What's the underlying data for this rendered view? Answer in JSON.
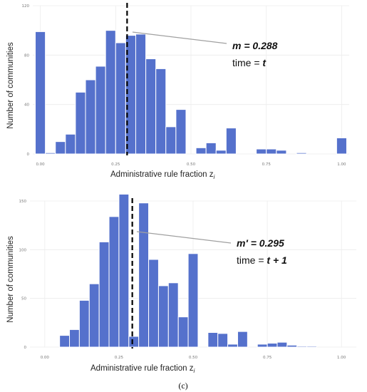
{
  "figure_label": "(c)",
  "chart_data": [
    {
      "type": "bar",
      "xlabel": "Administrative rule fraction z",
      "xlabel_subscript": "i",
      "ylabel": "Number of communities",
      "xlim": [
        -0.025,
        1.025
      ],
      "ylim": [
        0,
        120
      ],
      "x_ticks": [
        "0.00",
        "0.25",
        "0.50",
        "0.75",
        "1.00"
      ],
      "x_tick_values": [
        0,
        0.25,
        0.5,
        0.75,
        1.0
      ],
      "y_ticks": [
        "0",
        "40",
        "80",
        "120"
      ],
      "y_tick_values": [
        0,
        40,
        80,
        120
      ],
      "bin_width": 0.03333,
      "bin_centers": [
        0.0,
        0.0333,
        0.0667,
        0.1,
        0.1333,
        0.1667,
        0.2,
        0.2333,
        0.2667,
        0.3,
        0.3333,
        0.3667,
        0.4,
        0.4333,
        0.4667,
        0.5,
        0.5333,
        0.5667,
        0.6,
        0.6333,
        0.6667,
        0.7,
        0.7333,
        0.7667,
        0.8,
        0.8333,
        0.8667,
        0.9,
        0.9333,
        0.9667,
        1.0
      ],
      "values": [
        99,
        1,
        10,
        16,
        50,
        60,
        71,
        100,
        90,
        96,
        97,
        77,
        69,
        22,
        36,
        0,
        5,
        9,
        3,
        21,
        0,
        0,
        4,
        4,
        3,
        0,
        1,
        0,
        0,
        0,
        13
      ],
      "bar_color": "#5571cc",
      "mean_line_x": 0.288,
      "annotation": {
        "m_text": "m = 0.288",
        "time_text": "time = ",
        "time_value": "t"
      },
      "grid": true
    },
    {
      "type": "bar",
      "xlabel": "Administrative rule fraction z",
      "xlabel_subscript": "i",
      "ylabel": "Number of communities",
      "xlim": [
        -0.05,
        1.05
      ],
      "ylim": [
        0,
        150
      ],
      "x_ticks": [
        "0.00",
        "0.25",
        "0.50",
        "0.75",
        "1.00"
      ],
      "x_tick_values": [
        0,
        0.25,
        0.5,
        0.75,
        1.0
      ],
      "y_ticks": [
        "0",
        "50",
        "100",
        "150"
      ],
      "y_tick_values": [
        0,
        50,
        100,
        150
      ],
      "bin_width": 0.03333,
      "bin_centers": [
        0.0667,
        0.1,
        0.1333,
        0.1667,
        0.2,
        0.2333,
        0.2667,
        0.3,
        0.3333,
        0.3667,
        0.4,
        0.4333,
        0.4667,
        0.5,
        0.5333,
        0.5667,
        0.6,
        0.6333,
        0.6667,
        0.7,
        0.7333,
        0.7667,
        0.8,
        0.8333,
        0.8667,
        0.9
      ],
      "values": [
        12,
        18,
        48,
        65,
        108,
        134,
        157,
        11,
        148,
        90,
        63,
        66,
        31,
        96,
        0,
        15,
        14,
        3,
        16,
        0,
        3,
        4,
        5,
        2,
        1,
        1
      ],
      "bar_color": "#5571cc",
      "mean_line_x": 0.295,
      "annotation": {
        "m_text": "m′ = 0.295",
        "time_text": "time = ",
        "time_value": "t + 1"
      },
      "grid": true
    }
  ]
}
